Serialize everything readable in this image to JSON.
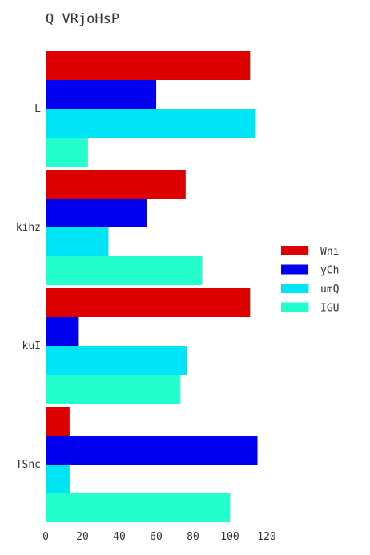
{
  "chart_data": {
    "type": "bar",
    "orientation": "horizontal",
    "title": "Q VRjoHsP",
    "xlabel": "",
    "ylabel": "",
    "xlim": [
      0,
      125
    ],
    "x_ticks": [
      0,
      20,
      40,
      60,
      80,
      100,
      120
    ],
    "categories": [
      "L",
      "kihz",
      "kuI",
      "TSnc"
    ],
    "series": [
      {
        "name": "Wni",
        "color": "#dd0000",
        "values": [
          111,
          76,
          111,
          13
        ]
      },
      {
        "name": "yCh",
        "color": "#0000ee",
        "values": [
          60,
          55,
          18,
          115
        ]
      },
      {
        "name": "umQ",
        "color": "#00e5f5",
        "values": [
          114,
          34,
          77,
          13
        ]
      },
      {
        "name": "IGU",
        "color": "#22ffcc",
        "values": [
          23,
          85,
          73,
          100
        ]
      }
    ],
    "grid": false,
    "legend_position": "right"
  }
}
